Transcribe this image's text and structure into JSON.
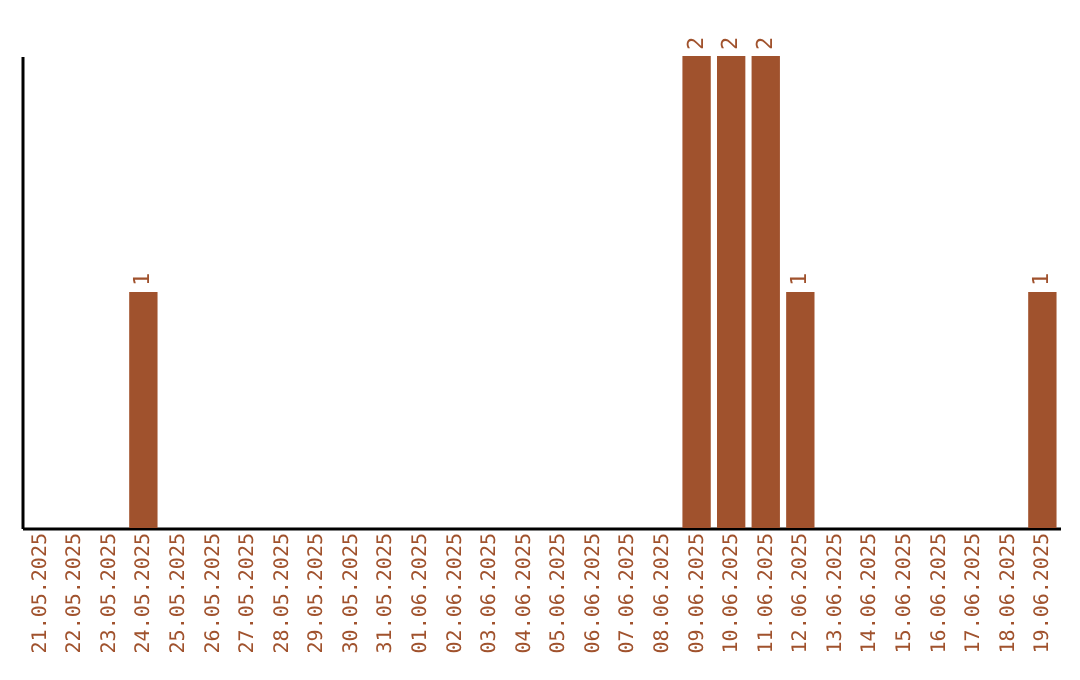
{
  "chart_data": {
    "type": "bar",
    "categories": [
      "21.05.2025",
      "22.05.2025",
      "23.05.2025",
      "24.05.2025",
      "25.05.2025",
      "26.05.2025",
      "27.05.2025",
      "28.05.2025",
      "29.05.2025",
      "30.05.2025",
      "31.05.2025",
      "01.06.2025",
      "02.06.2025",
      "03.06.2025",
      "04.06.2025",
      "05.06.2025",
      "06.06.2025",
      "07.06.2025",
      "08.06.2025",
      "09.06.2025",
      "10.06.2025",
      "11.06.2025",
      "12.06.2025",
      "13.06.2025",
      "14.06.2025",
      "15.06.2025",
      "16.06.2025",
      "17.06.2025",
      "18.06.2025",
      "19.06.2025"
    ],
    "values": [
      0,
      0,
      0,
      1,
      0,
      0,
      0,
      0,
      0,
      0,
      0,
      0,
      0,
      0,
      0,
      0,
      0,
      0,
      0,
      2,
      2,
      2,
      1,
      0,
      0,
      0,
      0,
      0,
      0,
      1
    ],
    "value_labels": [
      null,
      null,
      null,
      "1",
      null,
      null,
      null,
      null,
      null,
      null,
      null,
      null,
      null,
      null,
      null,
      null,
      null,
      null,
      null,
      "2",
      "2",
      "2",
      "1",
      null,
      null,
      null,
      null,
      null,
      null,
      "1"
    ],
    "color": "#a0522d",
    "tick_labels": "x"
  }
}
